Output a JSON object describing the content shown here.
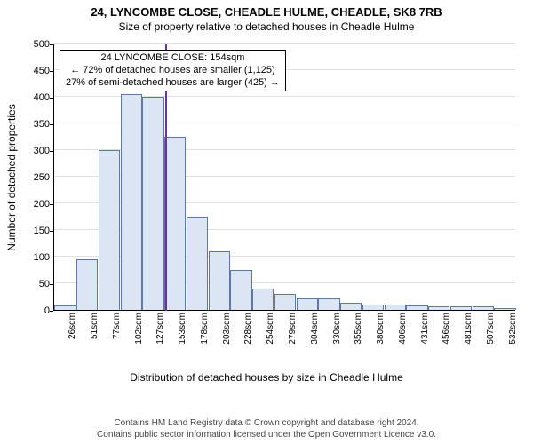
{
  "title": {
    "line1": "24, LYNCOMBE CLOSE, CHEADLE HULME, CHEADLE, SK8 7RB",
    "line2": "Size of property relative to detached houses in Cheadle Hulme"
  },
  "chart": {
    "type": "histogram",
    "ylabel": "Number of detached properties",
    "xlabel": "Distribution of detached houses by size in Cheadle Hulme",
    "ylim": [
      0,
      500
    ],
    "yticks": [
      0,
      50,
      100,
      150,
      200,
      250,
      300,
      350,
      400,
      450,
      500
    ],
    "xtick_labels": [
      "26sqm",
      "51sqm",
      "77sqm",
      "102sqm",
      "127sqm",
      "153sqm",
      "178sqm",
      "203sqm",
      "228sqm",
      "254sqm",
      "279sqm",
      "304sqm",
      "330sqm",
      "355sqm",
      "380sqm",
      "406sqm",
      "431sqm",
      "456sqm",
      "481sqm",
      "507sqm",
      "532sqm"
    ],
    "values": [
      8,
      95,
      300,
      405,
      400,
      325,
      175,
      110,
      75,
      40,
      30,
      22,
      22,
      14,
      10,
      10,
      8,
      6,
      6,
      6,
      4
    ],
    "bar_fill": "#dbe5f4",
    "bar_stroke": "#5a79a5",
    "grid_color": "#e0e0e0",
    "background_color": "#ffffff",
    "marker": {
      "position_index": 5.05,
      "color": "#7030a0"
    },
    "annotation": {
      "lines": [
        "24 LYNCOMBE CLOSE: 154sqm",
        "← 72% of detached houses are smaller (1,125)",
        "27% of semi-detached houses are larger (425) →"
      ]
    },
    "label_fontsize": 12,
    "tick_fontsize": 11,
    "xtick_fontsize": 10
  },
  "footer": {
    "line1": "Contains HM Land Registry data © Crown copyright and database right 2024.",
    "line2": "Contains public sector information licensed under the Open Government Licence v3.0."
  }
}
